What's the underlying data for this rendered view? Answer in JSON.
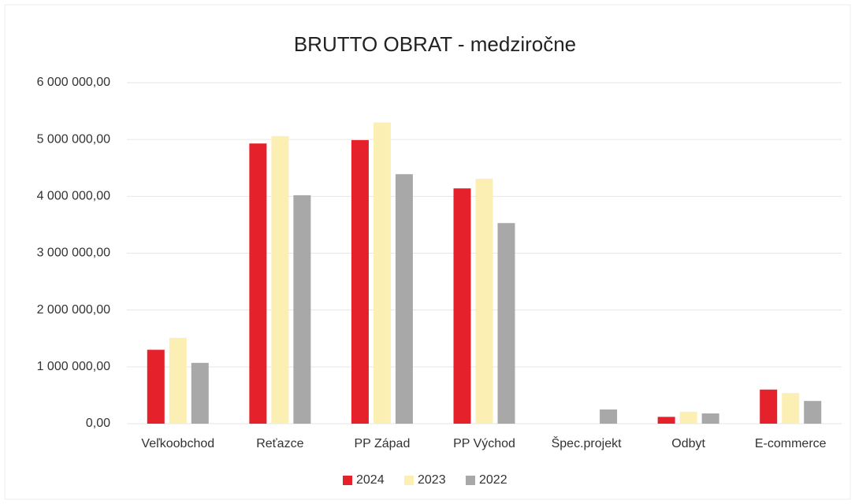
{
  "chart_data": {
    "type": "bar",
    "title": "BRUTTO OBRAT - medziročne",
    "categories": [
      "Veľkoobchod",
      "Reťazce",
      "PP Západ",
      "PP Východ",
      "Špec.projekt",
      "Odbyt",
      "E-commerce"
    ],
    "series": [
      {
        "name": "2024",
        "color": "#e5212b",
        "values": [
          1300000,
          4930000,
          4990000,
          4140000,
          0,
          120000,
          600000
        ]
      },
      {
        "name": "2023",
        "color": "#fcefb4",
        "values": [
          1510000,
          5060000,
          5300000,
          4310000,
          0,
          210000,
          540000
        ]
      },
      {
        "name": "2022",
        "color": "#a8a8a8",
        "values": [
          1070000,
          4020000,
          4390000,
          3530000,
          250000,
          180000,
          400000
        ]
      }
    ],
    "ylim": [
      0,
      6000000
    ],
    "yticks": [
      {
        "value": 0,
        "label": "0,00"
      },
      {
        "value": 1000000,
        "label": "1 000 000,00"
      },
      {
        "value": 2000000,
        "label": "2 000 000,00"
      },
      {
        "value": 3000000,
        "label": "3 000 000,00"
      },
      {
        "value": 4000000,
        "label": "4 000 000,00"
      },
      {
        "value": 5000000,
        "label": "5 000 000,00"
      },
      {
        "value": 6000000,
        "label": "6 000 000,00"
      }
    ],
    "grid": true,
    "legend": "bottom"
  }
}
